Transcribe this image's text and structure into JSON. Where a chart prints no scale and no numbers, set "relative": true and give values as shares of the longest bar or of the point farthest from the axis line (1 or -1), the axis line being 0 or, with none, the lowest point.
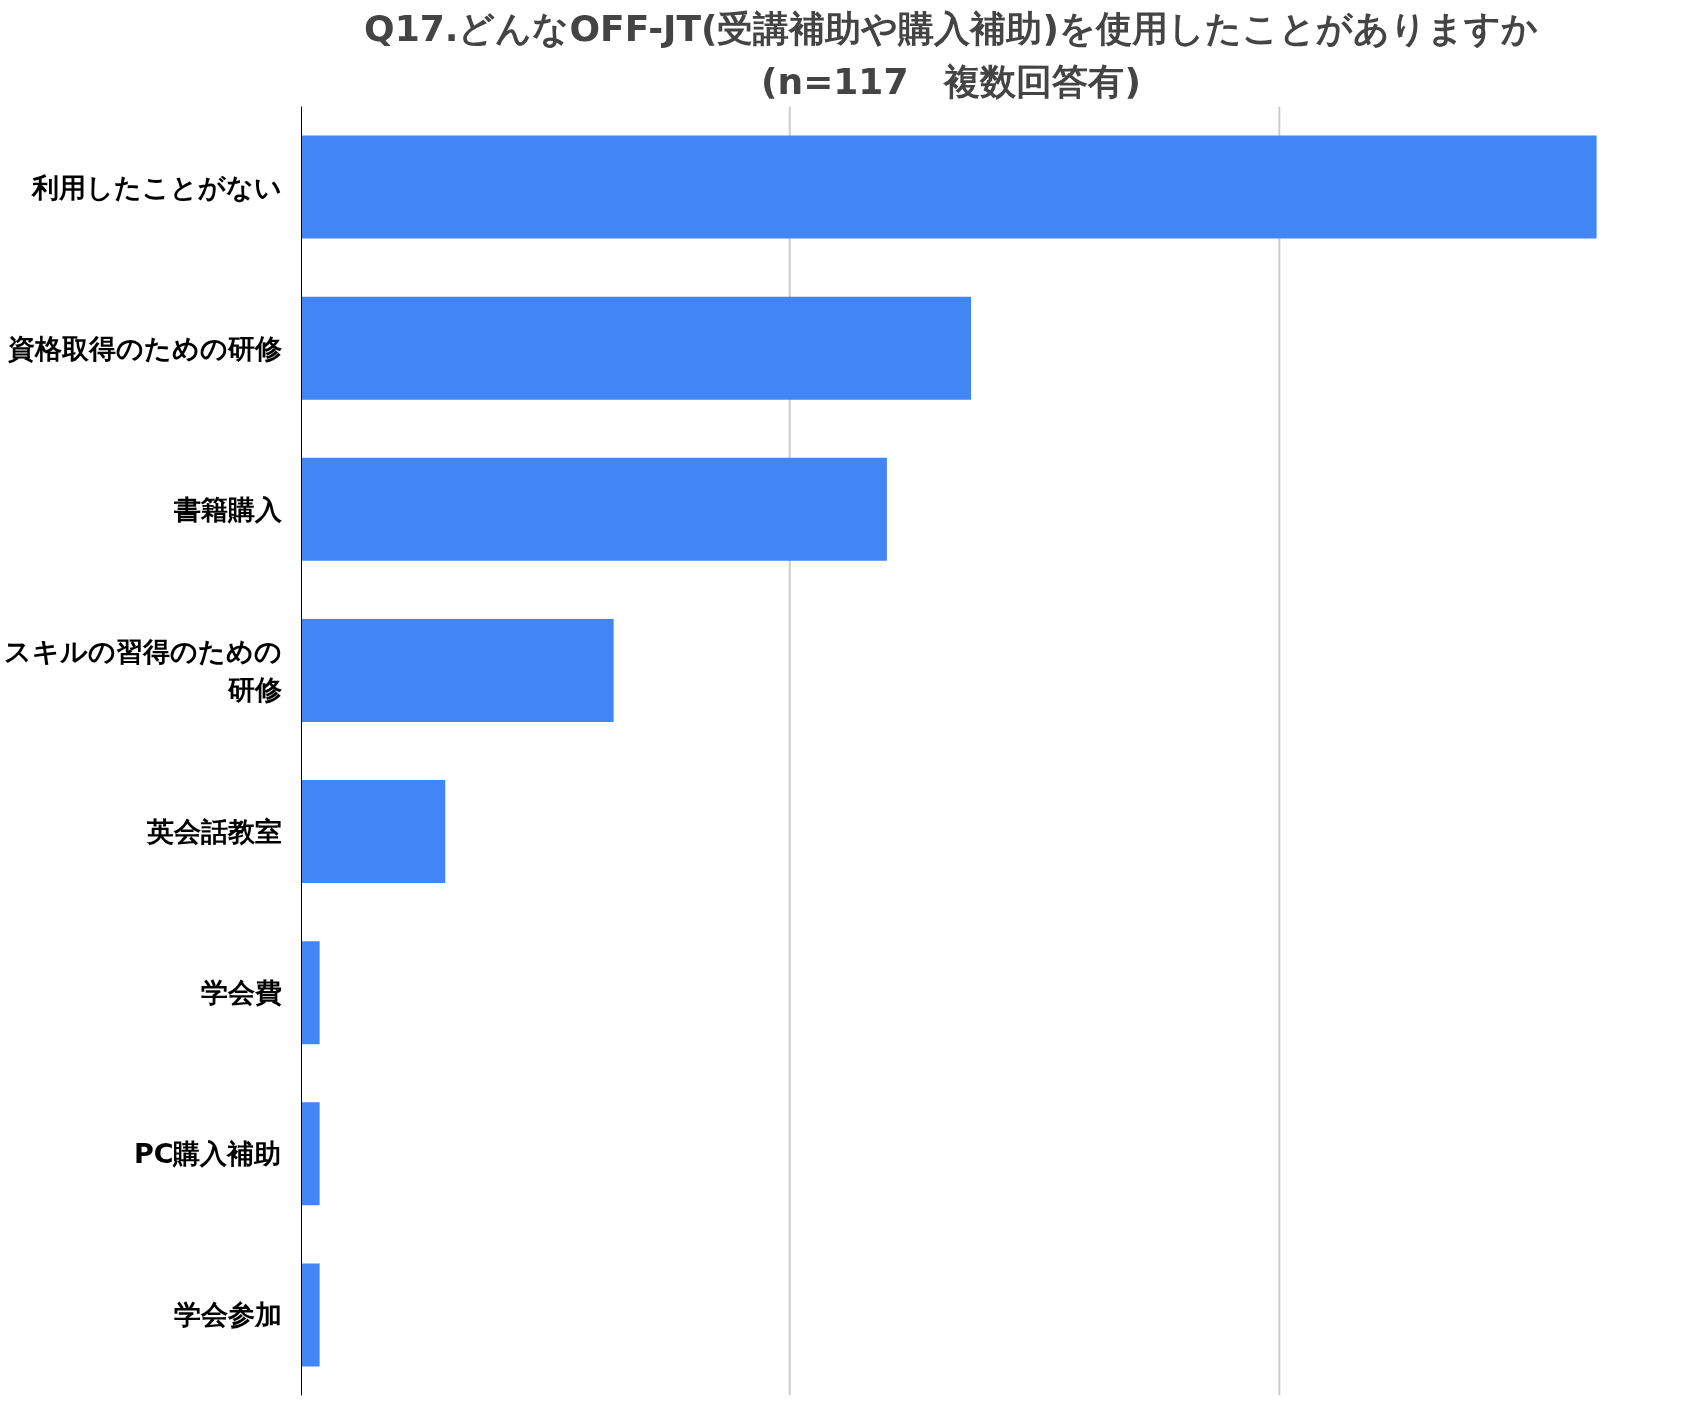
{
  "chart_data": {
    "type": "bar",
    "orientation": "horizontal",
    "relative": true,
    "title": "Q17.どんなOFF-JT(受講補助や購入補助)を使用したことがありますか",
    "subtitle": "(n=117　複数回答有)",
    "categories": [
      "利用したことがない",
      "資格取得のための研修",
      "書籍購入",
      "スキルの習得のための研修",
      "英会話教室",
      "学会費",
      "PC購入補助",
      "学会参加"
    ],
    "values": [
      1,
      0.517,
      0.452,
      0.241,
      0.111,
      0.014,
      0.014,
      0.014
    ],
    "color": "#4285f4",
    "ref_lines": [
      {
        "axis": "x",
        "value": 0.377,
        "color": "#cccccc"
      },
      {
        "axis": "x",
        "value": 0.755,
        "color": "#cccccc"
      }
    ]
  }
}
